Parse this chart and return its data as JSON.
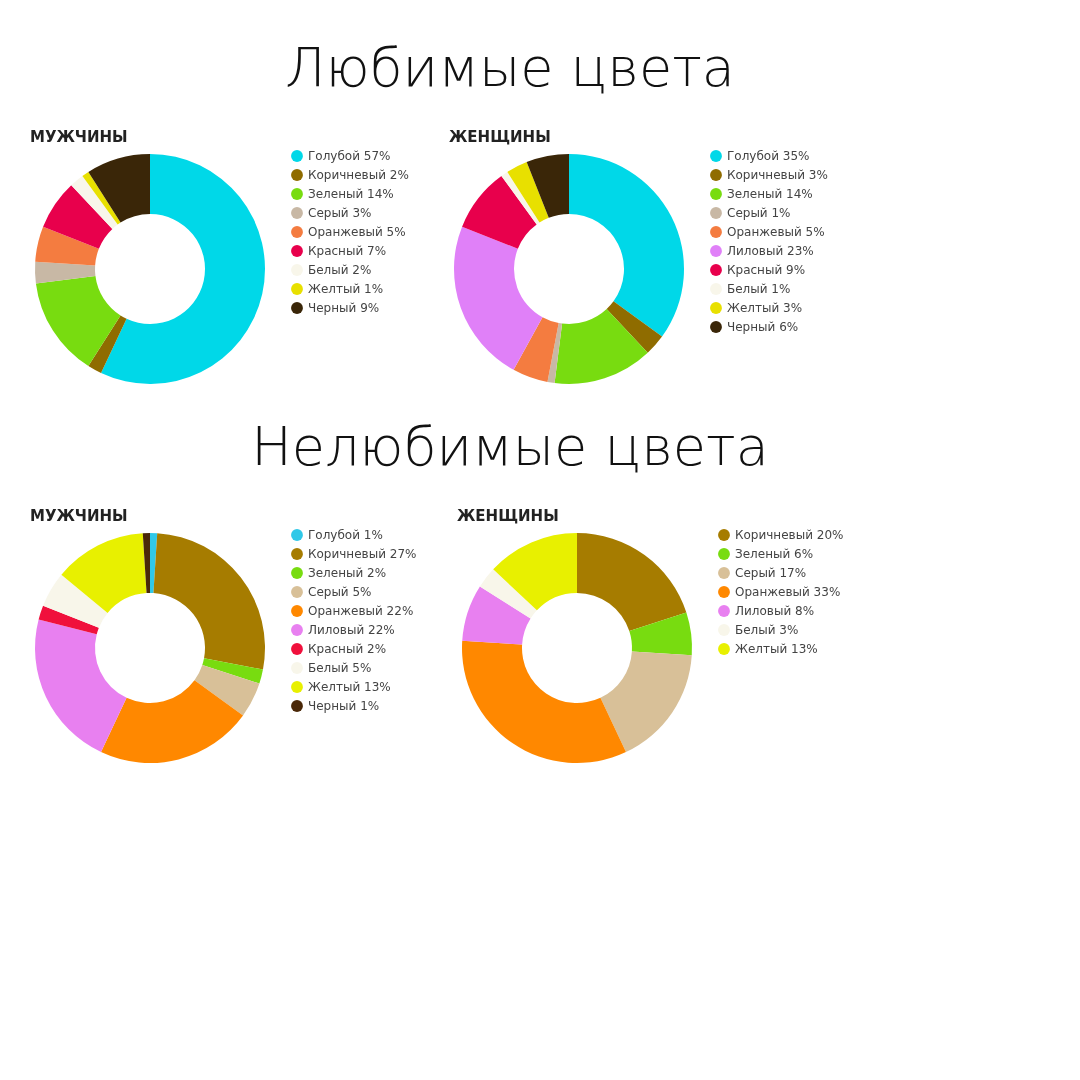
{
  "chart_data": [
    {
      "type": "donut",
      "title": "МУЖЧИНЫ",
      "annotations": [
        "Любимые цвета"
      ],
      "legend": "right",
      "categories": [
        "Голубой 57%",
        "Коричневый 2%",
        "Зеленый 14%",
        "Серый 3%",
        "Оранжевый 5%",
        "Красный 7%",
        "Белый 2%",
        "Желтый 1%",
        "Черный 9%"
      ],
      "values": [
        57,
        2,
        14,
        3,
        5,
        7,
        2,
        1,
        9
      ],
      "colors": [
        "#00d8e8",
        "#8f6c00",
        "#78dc10",
        "#c8b8a5",
        "#f47c40",
        "#e8004c",
        "#f8f6ea",
        "#e8e000",
        "#3a2608"
      ]
    },
    {
      "type": "donut",
      "title": "ЖЕНЩИНЫ",
      "legend": "right",
      "categories": [
        "Голубой 35%",
        "Коричневый 3%",
        "Зеленый 14%",
        "Серый 1%",
        "Оранжевый 5%",
        "Лиловый 23%",
        "Красный 9%",
        "Белый 1%",
        "Желтый 3%",
        "Черный 6%"
      ],
      "values": [
        35,
        3,
        14,
        1,
        5,
        23,
        9,
        1,
        3,
        6
      ],
      "colors": [
        "#00d8e8",
        "#8f6c00",
        "#78dc10",
        "#c8b8a5",
        "#f47c40",
        "#e080f8",
        "#e8004c",
        "#f8f6ea",
        "#e8e000",
        "#3a2608"
      ]
    },
    {
      "type": "donut",
      "title": "МУЖЧИНЫ",
      "annotations": [
        "Нелюбимые цвета"
      ],
      "legend": "right",
      "categories": [
        "Голубой 1%",
        "Коричневый 27%",
        "Зеленый 2%",
        "Серый 5%",
        "Оранжевый 22%",
        "Лиловый 22%",
        "Красный 2%",
        "Белый 5%",
        "Желтый 13%",
        "Черный 1%"
      ],
      "values": [
        1,
        27,
        2,
        5,
        22,
        22,
        2,
        5,
        13,
        1
      ],
      "colors": [
        "#30c8e8",
        "#a67c00",
        "#78dc10",
        "#d8c098",
        "#ff8800",
        "#e880f0",
        "#f0103c",
        "#f8f6ea",
        "#e8f000",
        "#4a2808"
      ]
    },
    {
      "type": "donut",
      "title": "ЖЕНЩИНЫ",
      "legend": "right",
      "categories": [
        "Коричневый 20%",
        "Зеленый 6%",
        "Серый 17%",
        "Оранжевый 33%",
        "Лиловый 8%",
        "Белый 3%",
        "Желтый 13%"
      ],
      "values": [
        20,
        6,
        17,
        33,
        8,
        3,
        13
      ],
      "colors": [
        "#a67c00",
        "#78dc10",
        "#d8c098",
        "#ff8800",
        "#e880f0",
        "#f8f6ea",
        "#e8f000"
      ]
    }
  ]
}
